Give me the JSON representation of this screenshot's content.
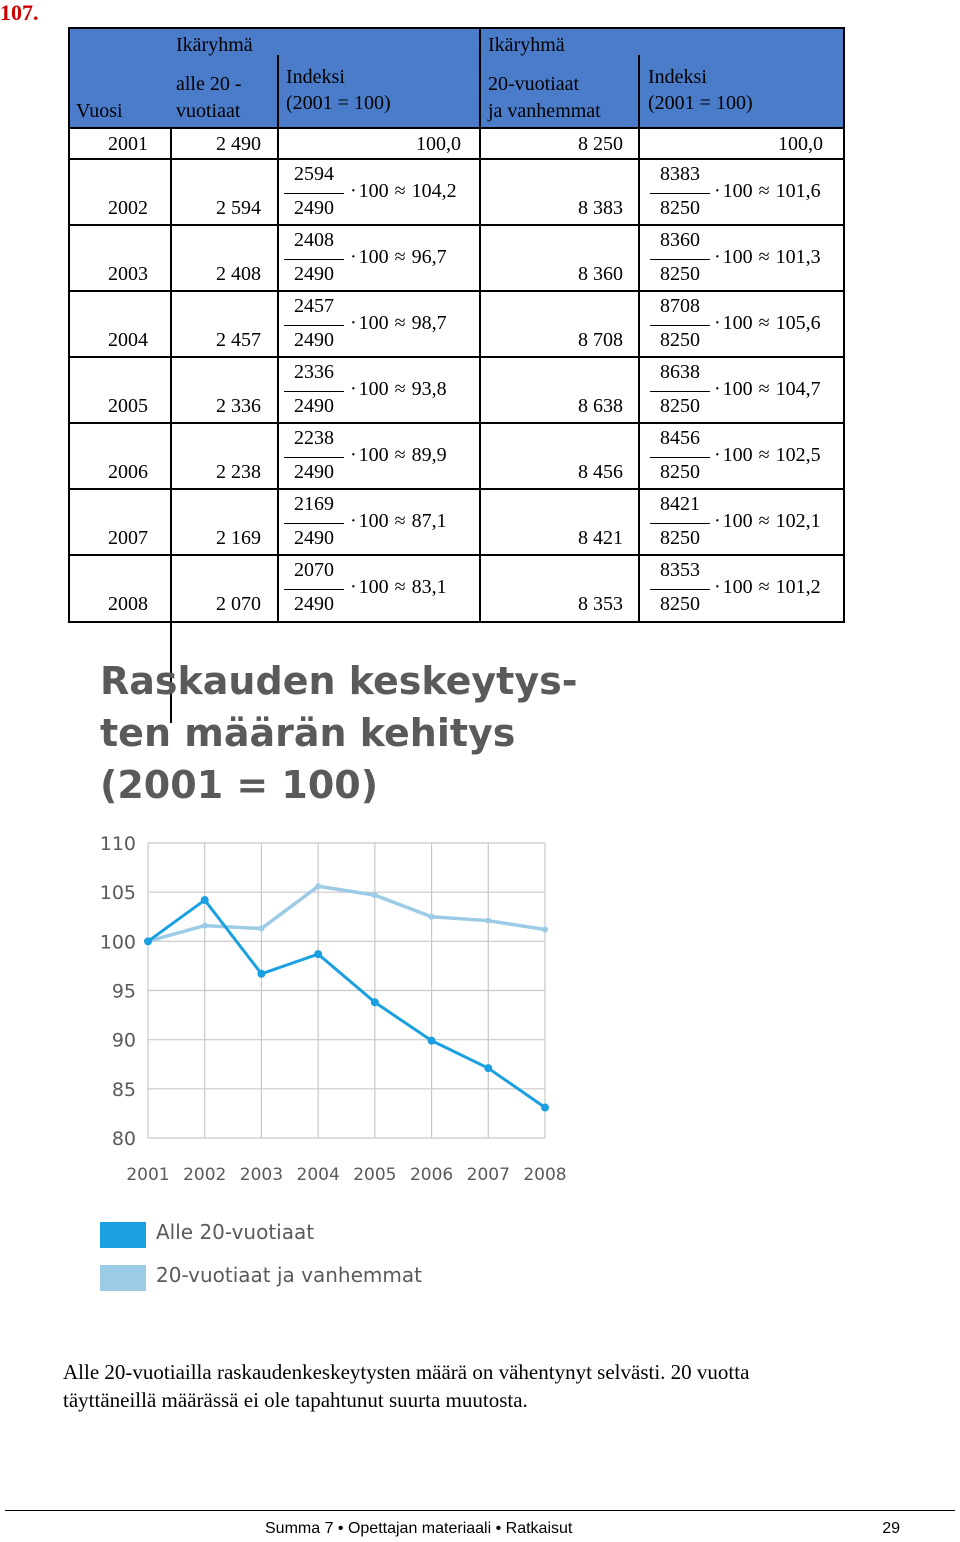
{
  "task_number": "107.",
  "table": {
    "headers": {
      "vuosi": "Vuosi",
      "group1_title": "Ikäryhmä",
      "group1_sub_line1": "alle 20 -",
      "group1_sub_line2": "vuotiaat",
      "index1_line1": "Indeksi",
      "index1_line2": "(2001 = 100)",
      "group2_title": "Ikäryhmä",
      "group2_sub_line1": "20-vuotiaat",
      "group2_sub_line2": "ja vanhemmat",
      "index2_line1": "Indeksi",
      "index2_line2": "(2001 = 100)"
    },
    "first_row": {
      "year": "2001",
      "count1": "2 490",
      "index1": "100,0",
      "count2": "8 250",
      "index2": "100,0"
    },
    "rows": [
      {
        "year": "2002",
        "count1": "2 594",
        "num1": "2594",
        "den1": "2490",
        "result1": "104,2",
        "count2": "8 383",
        "num2": "8383",
        "den2": "8250",
        "result2": "101,6"
      },
      {
        "year": "2003",
        "count1": "2 408",
        "num1": "2408",
        "den1": "2490",
        "result1": "96,7",
        "count2": "8 360",
        "num2": "8360",
        "den2": "8250",
        "result2": "101,3"
      },
      {
        "year": "2004",
        "count1": "2 457",
        "num1": "2457",
        "den1": "2490",
        "result1": "98,7",
        "count2": "8 708",
        "num2": "8708",
        "den2": "8250",
        "result2": "105,6"
      },
      {
        "year": "2005",
        "count1": "2 336",
        "num1": "2336",
        "den1": "2490",
        "result1": "93,8",
        "count2": "8 638",
        "num2": "8638",
        "den2": "8250",
        "result2": "104,7"
      },
      {
        "year": "2006",
        "count1": "2 238",
        "num1": "2238",
        "den1": "2490",
        "result1": "89,9",
        "count2": "8 456",
        "num2": "8456",
        "den2": "8250",
        "result2": "102,5"
      },
      {
        "year": "2007",
        "count1": "2 169",
        "num1": "2169",
        "den1": "2490",
        "result1": "87,1",
        "count2": "8 421",
        "num2": "8421",
        "den2": "8250",
        "result2": "102,1"
      },
      {
        "year": "2008",
        "count1": "2 070",
        "num1": "2070",
        "den1": "2490",
        "result1": "83,1",
        "count2": "8 353",
        "num2": "8353",
        "den2": "8250",
        "result2": "101,2"
      }
    ],
    "multiplier": "100",
    "approx_symbol": "≈",
    "dot_symbol": "·",
    "header_color": "#4a7cc9"
  },
  "chart_data": {
    "type": "line",
    "title_lines": [
      "Raskauden keskeytys-",
      "ten määrän kehitys",
      "(2001 = 100)"
    ],
    "categories": [
      "2001",
      "2002",
      "2003",
      "2004",
      "2005",
      "2006",
      "2007",
      "2008"
    ],
    "series": [
      {
        "name": "Alle 20-vuotiaat",
        "color": "#1aa0e0",
        "values": [
          100.0,
          104.2,
          96.7,
          98.7,
          93.8,
          89.9,
          87.1,
          83.1
        ]
      },
      {
        "name": "20-vuotiaat ja vanhemmat",
        "color": "#9ccbe6",
        "values": [
          100.0,
          101.6,
          101.3,
          105.6,
          104.7,
          102.5,
          102.1,
          101.2
        ]
      }
    ],
    "y_ticks": [
      110,
      105,
      100,
      95,
      90,
      85,
      80
    ],
    "ylim": [
      80,
      110
    ],
    "grid": true,
    "legend_position": "bottom-left"
  },
  "conclusion": {
    "line1": "Alle 20-vuotiailla raskaudenkeskeytysten määrä on vähentynyt selvästi. 20 vuotta",
    "line2": "täyttäneillä määrässä ei ole tapahtunut suurta muutosta."
  },
  "footer": {
    "text": "Summa 7  •  Opettajan materiaali  •  Ratkaisut",
    "page_number": "29"
  }
}
